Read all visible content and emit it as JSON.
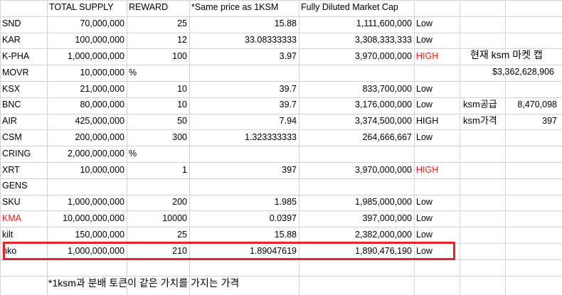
{
  "headers": [
    "",
    "TOTAL SUPPLY",
    "REWARD",
    "*Same price as 1KSM",
    "Fully Diluted Market Cap",
    ""
  ],
  "rows": [
    {
      "name": "SND",
      "supply": "70,000,000",
      "reward": "25",
      "price": "15.88",
      "fdmc": "1,111,600,000",
      "risk": "Low"
    },
    {
      "name": "KAR",
      "supply": "100,000,000",
      "reward": "12",
      "price": "33.08333333",
      "fdmc": "3,308,333,333",
      "risk": "Low"
    },
    {
      "name": "K-PHA",
      "supply": "1,000,000,000",
      "reward": "100",
      "price": "3.97",
      "fdmc": "3,970,000,000",
      "risk": "HIGH"
    },
    {
      "name": "MOVR",
      "supply": "10,000,000",
      "reward": "%",
      "price": "",
      "fdmc": "",
      "risk": ""
    },
    {
      "name": "KSX",
      "supply": "21,000,000",
      "reward": "10",
      "price": "39.7",
      "fdmc": "833,700,000",
      "risk": "Low"
    },
    {
      "name": "BNC",
      "supply": "80,000,000",
      "reward": "10",
      "price": "39.7",
      "fdmc": "3,176,000,000",
      "risk": "Low"
    },
    {
      "name": "AIR",
      "supply": "425,000,000",
      "reward": "50",
      "price": "7.94",
      "fdmc": "3,374,500,000",
      "risk": "HIGH"
    },
    {
      "name": "CSM",
      "supply": "200,000,000",
      "reward": "300",
      "price": "1.323333333",
      "fdmc": "264,666,667",
      "risk": "Low"
    },
    {
      "name": "CRING",
      "supply": "2,000,000,000",
      "reward": "%",
      "price": "",
      "fdmc": "",
      "risk": ""
    },
    {
      "name": "XRT",
      "supply": "10,000,000",
      "reward": "1",
      "price": "397",
      "fdmc": "3,970,000,000",
      "risk": "HIGH"
    },
    {
      "name": "GENS",
      "supply": "",
      "reward": "",
      "price": "",
      "fdmc": "",
      "risk": ""
    },
    {
      "name": "SKU",
      "supply": "1,000,000,000",
      "reward": "200",
      "price": "1.985",
      "fdmc": "1,985,000,000",
      "risk": "Low"
    },
    {
      "name": "KMA",
      "supply": "10,000,000,000",
      "reward": "10000",
      "price": "0.0397",
      "fdmc": "397,000,000",
      "risk": "Low"
    },
    {
      "name": "kilt",
      "supply": "150,000,000",
      "reward": "25",
      "price": "15.88",
      "fdmc": "2,382,000,000",
      "risk": "Low"
    },
    {
      "name": "hko",
      "supply": "1,000,000,000",
      "reward": "210",
      "price": "1.89047619",
      "fdmc": "1,890,476,190",
      "risk": "Low"
    }
  ],
  "side": {
    "market_cap_label": "현재 ksm 마켓 캡",
    "market_cap_value": "$3,362,628,906",
    "supply_label": "ksm공급",
    "supply_value": "8,470,098",
    "price_label": "ksm가격",
    "price_value": "397"
  },
  "footnote": "*1ksm과 분배 토큰이 같은 가치를 가지는 가격",
  "colors": {
    "accent_red": "#e0211b",
    "grid": "#d4d4d4",
    "highlight_box": "#e3202b"
  }
}
